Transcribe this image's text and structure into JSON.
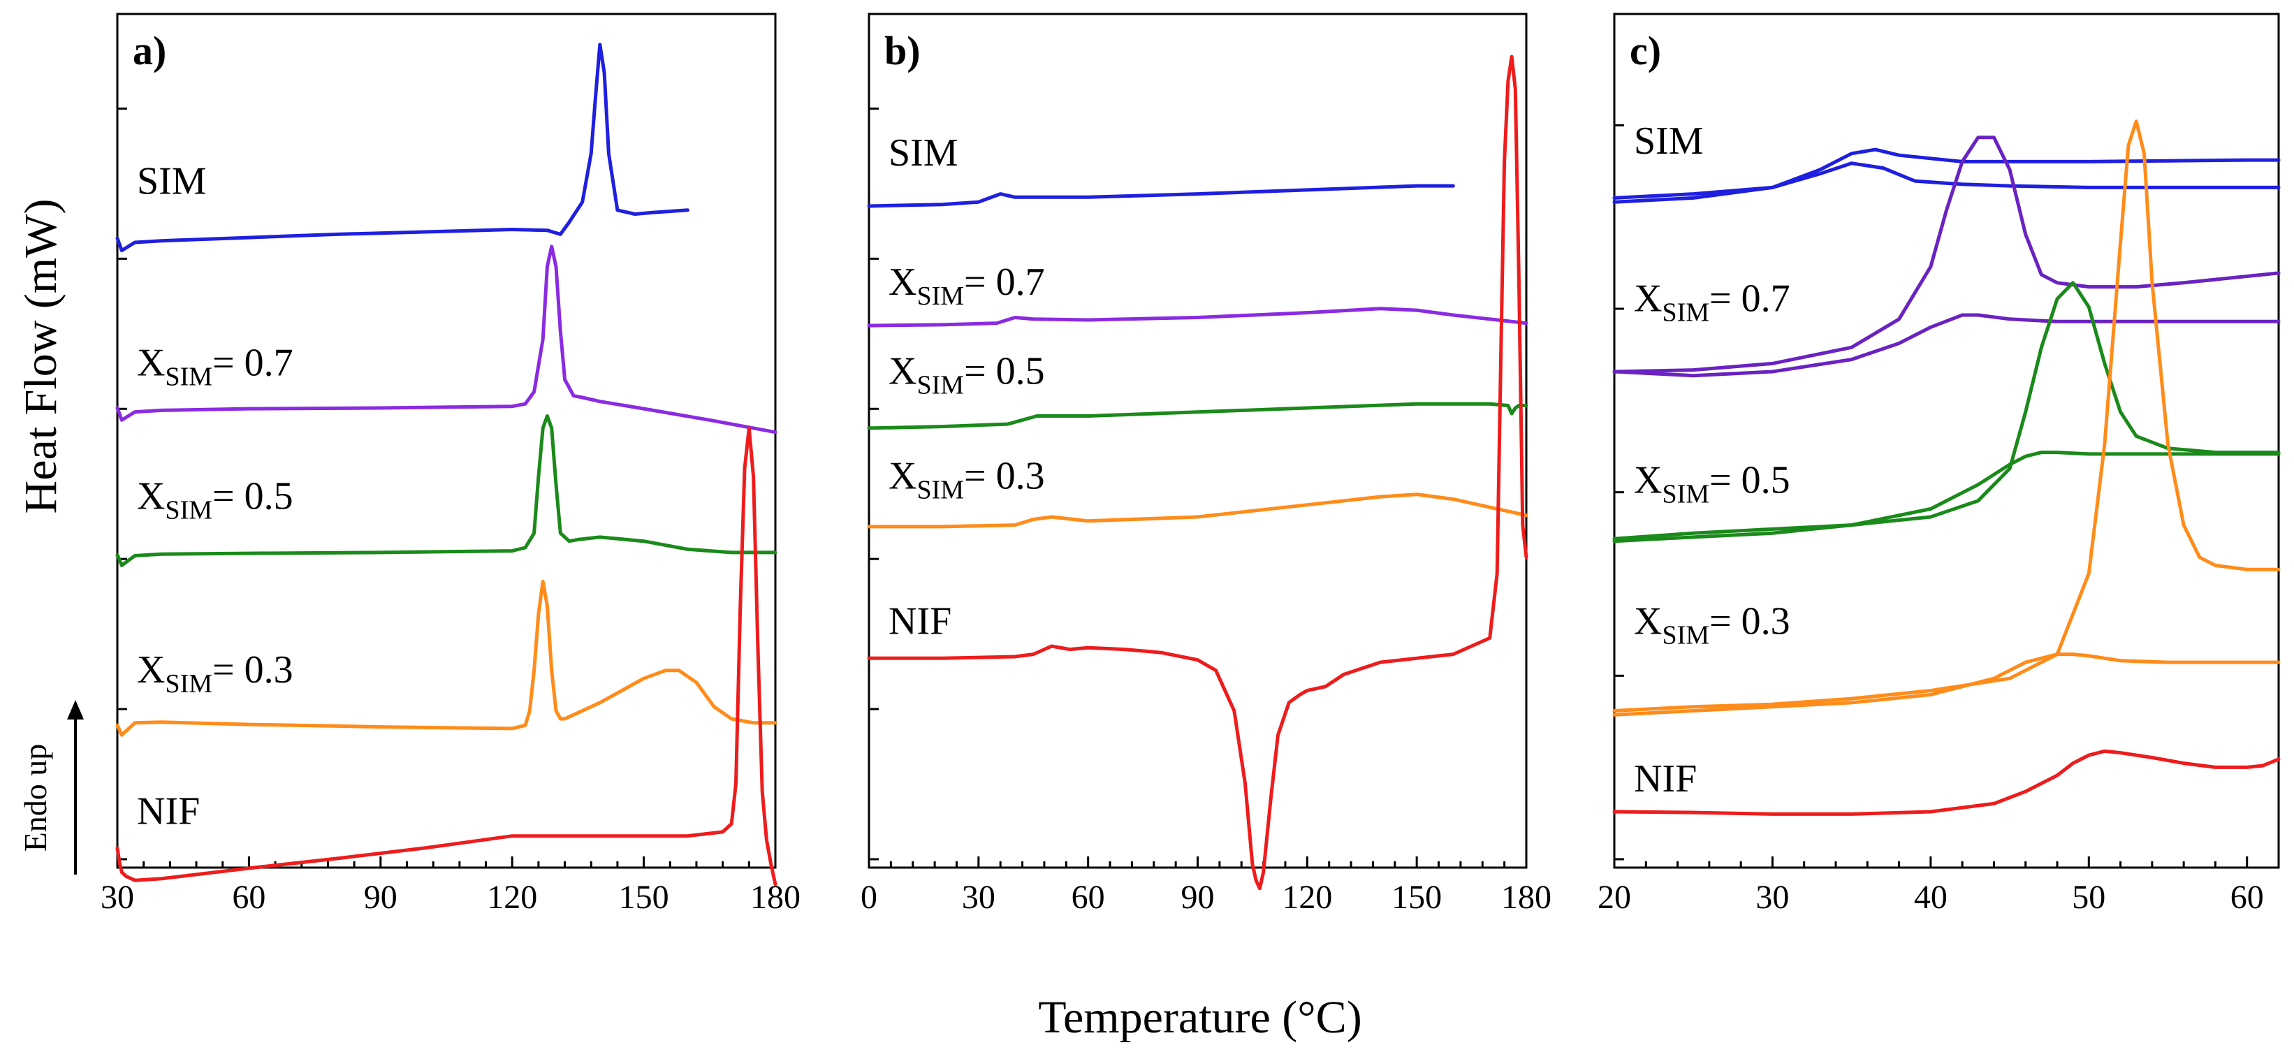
{
  "figure": {
    "xlabel": "Temperature (°C)",
    "ylabel": "Heat Flow (mW)",
    "endo_label": "Endo up"
  },
  "colors": {
    "SIM": "#1f1fe0",
    "X07": "#8a2be2",
    "X05": "#1a8a1a",
    "X03": "#ff8c1a",
    "NIF": "#ee1c1c",
    "X07_c": "#6a22c2"
  },
  "chart_data": [
    {
      "type": "line",
      "panel": "a)",
      "title": "a)",
      "xlabel": "Temperature (°C)",
      "ylabel": "Heat Flow (mW)",
      "xlim": [
        30,
        180
      ],
      "xticks": [
        30,
        60,
        90,
        120,
        150,
        180
      ],
      "ylim": [
        0,
        1
      ],
      "y_tick_count": 6,
      "series": [
        {
          "name": "SIM",
          "label": "SIM",
          "sub": "",
          "label_rest": "",
          "color": "#1f1fe0",
          "label_y": 0.81,
          "x": [
            30,
            31,
            34,
            40,
            60,
            80,
            100,
            120,
            128,
            131,
            133,
            136,
            138,
            139,
            140,
            141,
            142,
            144,
            148,
            152,
            160
          ],
          "y": [
            0.755,
            0.74,
            0.75,
            0.752,
            0.756,
            0.76,
            0.763,
            0.766,
            0.765,
            0.76,
            0.775,
            0.8,
            0.86,
            0.93,
            0.995,
            0.96,
            0.86,
            0.79,
            0.785,
            0.787,
            0.79
          ]
        },
        {
          "name": "X_SIM = 0.7",
          "label": "X",
          "sub": "SIM",
          "label_rest": "= 0.7",
          "color": "#8a2be2",
          "label_y": 0.585,
          "x": [
            30,
            31,
            34,
            40,
            60,
            90,
            120,
            123,
            125,
            127,
            128,
            129,
            130,
            131,
            132,
            134,
            136,
            140,
            150,
            165,
            180
          ],
          "y": [
            0.545,
            0.53,
            0.54,
            0.542,
            0.544,
            0.545,
            0.547,
            0.55,
            0.565,
            0.63,
            0.72,
            0.745,
            0.72,
            0.64,
            0.58,
            0.56,
            0.558,
            0.553,
            0.544,
            0.53,
            0.515
          ]
        },
        {
          "name": "X_SIM = 0.5",
          "label": "X",
          "sub": "SIM",
          "label_rest": "= 0.5",
          "color": "#1a8a1a",
          "label_y": 0.42,
          "x": [
            30,
            31,
            34,
            40,
            60,
            90,
            120,
            123,
            125,
            126,
            127,
            128,
            129,
            130,
            131,
            133,
            135,
            140,
            150,
            160,
            170,
            180
          ],
          "y": [
            0.363,
            0.35,
            0.362,
            0.364,
            0.365,
            0.366,
            0.368,
            0.372,
            0.39,
            0.46,
            0.52,
            0.535,
            0.52,
            0.45,
            0.39,
            0.38,
            0.382,
            0.385,
            0.38,
            0.37,
            0.366,
            0.366
          ]
        },
        {
          "name": "X_SIM = 0.3",
          "label": "X",
          "sub": "SIM",
          "label_rest": "= 0.3",
          "color": "#ff8c1a",
          "label_y": 0.205,
          "x": [
            30,
            31,
            34,
            40,
            60,
            90,
            120,
            123,
            124,
            125,
            126,
            127,
            128,
            129,
            130,
            131,
            132,
            134,
            140,
            145,
            150,
            155,
            158,
            162,
            166,
            170,
            175,
            180
          ],
          "y": [
            0.152,
            0.14,
            0.155,
            0.156,
            0.153,
            0.15,
            0.148,
            0.152,
            0.17,
            0.22,
            0.29,
            0.33,
            0.3,
            0.22,
            0.17,
            0.16,
            0.16,
            0.165,
            0.18,
            0.195,
            0.21,
            0.22,
            0.22,
            0.205,
            0.175,
            0.16,
            0.155,
            0.155
          ]
        },
        {
          "name": "NIF",
          "label": "NIF",
          "sub": "",
          "label_rest": "",
          "color": "#ee1c1c",
          "label_y": 0.03,
          "x": [
            30,
            30.5,
            31,
            32,
            34,
            40,
            60,
            80,
            100,
            120,
            140,
            160,
            168,
            170,
            171,
            172,
            173,
            174,
            175,
            176,
            177,
            178,
            179,
            180
          ],
          "y": [
            0.0,
            -0.018,
            -0.03,
            -0.035,
            -0.04,
            -0.038,
            -0.025,
            -0.013,
            0.0,
            0.015,
            0.015,
            0.015,
            0.02,
            0.03,
            0.08,
            0.3,
            0.47,
            0.52,
            0.46,
            0.25,
            0.07,
            0.01,
            -0.02,
            -0.045
          ]
        }
      ]
    },
    {
      "type": "line",
      "panel": "b)",
      "title": "b)",
      "xlabel": "Temperature (°C)",
      "ylabel": "Heat Flow (mW)",
      "xlim": [
        0,
        180
      ],
      "xticks": [
        0,
        30,
        60,
        90,
        120,
        150,
        180
      ],
      "ylim": [
        0,
        1
      ],
      "y_tick_count": 6,
      "series": [
        {
          "name": "SIM",
          "label": "SIM",
          "sub": "",
          "label_rest": "",
          "color": "#1f1fe0",
          "label_y": 0.845,
          "x": [
            0,
            20,
            30,
            33,
            36,
            40,
            60,
            90,
            120,
            150,
            160
          ],
          "y": [
            0.795,
            0.797,
            0.8,
            0.805,
            0.81,
            0.806,
            0.806,
            0.81,
            0.815,
            0.82,
            0.82
          ]
        },
        {
          "name": "X_SIM = 0.7",
          "label": "X",
          "sub": "SIM",
          "label_rest": "= 0.7",
          "color": "#8a2be2",
          "label_y": 0.685,
          "x": [
            0,
            20,
            35,
            40,
            45,
            60,
            90,
            120,
            140,
            150,
            160,
            170,
            180
          ],
          "y": [
            0.647,
            0.648,
            0.65,
            0.657,
            0.655,
            0.654,
            0.657,
            0.663,
            0.668,
            0.666,
            0.66,
            0.655,
            0.65
          ]
        },
        {
          "name": "X_SIM = 0.5",
          "label": "X",
          "sub": "SIM",
          "label_rest": "= 0.5",
          "color": "#1a8a1a",
          "label_y": 0.575,
          "x": [
            0,
            20,
            38,
            42,
            46,
            60,
            90,
            120,
            150,
            170,
            175,
            176,
            177,
            178,
            180
          ],
          "y": [
            0.52,
            0.522,
            0.525,
            0.53,
            0.535,
            0.535,
            0.54,
            0.545,
            0.55,
            0.55,
            0.548,
            0.538,
            0.545,
            0.548,
            0.548
          ]
        },
        {
          "name": "X_SIM = 0.3",
          "label": "X",
          "sub": "SIM",
          "label_rest": "= 0.3",
          "color": "#ff8c1a",
          "label_y": 0.445,
          "x": [
            0,
            20,
            40,
            45,
            50,
            60,
            90,
            120,
            140,
            150,
            160,
            170,
            180
          ],
          "y": [
            0.398,
            0.398,
            0.4,
            0.407,
            0.41,
            0.405,
            0.41,
            0.425,
            0.435,
            0.438,
            0.432,
            0.422,
            0.412
          ]
        },
        {
          "name": "NIF",
          "label": "NIF",
          "sub": "",
          "label_rest": "",
          "color": "#ee1c1c",
          "label_y": 0.265,
          "x": [
            0,
            20,
            40,
            45,
            50,
            55,
            60,
            70,
            80,
            90,
            95,
            100,
            103,
            105,
            106,
            107,
            108,
            110,
            112,
            115,
            118,
            120,
            125,
            130,
            140,
            150,
            160,
            170,
            172,
            173,
            174,
            175,
            176,
            177,
            178,
            179,
            180
          ],
          "y": [
            0.235,
            0.235,
            0.237,
            0.24,
            0.25,
            0.246,
            0.248,
            0.246,
            0.242,
            0.233,
            0.22,
            0.17,
            0.08,
            -0.02,
            -0.04,
            -0.05,
            -0.03,
            0.06,
            0.14,
            0.18,
            0.19,
            0.195,
            0.2,
            0.215,
            0.23,
            0.235,
            0.24,
            0.26,
            0.34,
            0.6,
            0.85,
            0.95,
            0.98,
            0.94,
            0.7,
            0.4,
            0.36
          ]
        }
      ]
    },
    {
      "type": "line",
      "panel": "c)",
      "title": "c)",
      "xlabel": "Temperature (°C)",
      "ylabel": "Heat Flow (mW)",
      "xlim": [
        20,
        62
      ],
      "xticks": [
        20,
        30,
        40,
        50,
        60
      ],
      "ylim": [
        0,
        1
      ],
      "y_tick_count": 5,
      "series": [
        {
          "name": "SIM",
          "label": "SIM",
          "sub": "",
          "label_rest": "",
          "color": "#1f1fe0",
          "label_y": 0.86,
          "x": [
            20,
            25,
            30,
            33,
            35,
            37,
            39,
            42,
            45,
            50,
            55,
            60,
            62
          ],
          "y": [
            0.805,
            0.81,
            0.818,
            0.835,
            0.848,
            0.842,
            0.826,
            0.822,
            0.82,
            0.818,
            0.818,
            0.818,
            0.818
          ],
          "x2": [
            20,
            25,
            30,
            33,
            35,
            36.5,
            38,
            42,
            45,
            50,
            55,
            60,
            62
          ],
          "y2": [
            0.8,
            0.805,
            0.818,
            0.84,
            0.86,
            0.865,
            0.858,
            0.85,
            0.85,
            0.85,
            0.851,
            0.852,
            0.852
          ]
        },
        {
          "name": "X_SIM = 0.7",
          "label": "X",
          "sub": "SIM",
          "label_rest": "= 0.7",
          "color": "#6a22c2",
          "label_y": 0.665,
          "x": [
            20,
            25,
            30,
            35,
            38,
            40,
            41,
            42,
            43,
            44,
            45,
            46,
            47,
            48,
            50,
            53,
            56,
            62
          ],
          "y": [
            0.59,
            0.592,
            0.6,
            0.62,
            0.655,
            0.72,
            0.79,
            0.85,
            0.88,
            0.88,
            0.84,
            0.76,
            0.71,
            0.7,
            0.695,
            0.695,
            0.7,
            0.712
          ],
          "x2": [
            20,
            25,
            30,
            35,
            38,
            40,
            42,
            43,
            45,
            48,
            50,
            55,
            60,
            62
          ],
          "y2": [
            0.59,
            0.585,
            0.59,
            0.605,
            0.625,
            0.645,
            0.66,
            0.66,
            0.655,
            0.652,
            0.652,
            0.652,
            0.652,
            0.652
          ]
        },
        {
          "name": "X_SIM = 0.5",
          "label": "X",
          "sub": "SIM",
          "label_rest": "= 0.5",
          "color": "#1a8a1a",
          "label_y": 0.44,
          "x": [
            20,
            25,
            30,
            35,
            40,
            43,
            45,
            46,
            47,
            48,
            49,
            50,
            51,
            52,
            53,
            55,
            58,
            62
          ],
          "y": [
            0.383,
            0.39,
            0.395,
            0.4,
            0.41,
            0.43,
            0.47,
            0.54,
            0.62,
            0.68,
            0.7,
            0.67,
            0.6,
            0.54,
            0.51,
            0.495,
            0.49,
            0.49
          ],
          "x2": [
            20,
            25,
            30,
            35,
            40,
            43,
            45,
            46,
            47,
            48,
            50,
            55,
            60,
            62
          ],
          "y2": [
            0.38,
            0.385,
            0.39,
            0.4,
            0.42,
            0.45,
            0.475,
            0.485,
            0.49,
            0.49,
            0.488,
            0.488,
            0.488,
            0.488
          ]
        },
        {
          "name": "X_SIM = 0.3",
          "label": "X",
          "sub": "SIM",
          "label_rest": "= 0.3",
          "color": "#ff8c1a",
          "label_y": 0.265,
          "x": [
            20,
            25,
            30,
            35,
            40,
            45,
            48,
            50,
            51,
            52,
            52.5,
            53,
            53.5,
            54,
            55,
            56,
            57,
            58,
            60,
            62
          ],
          "y": [
            0.17,
            0.175,
            0.178,
            0.185,
            0.195,
            0.21,
            0.24,
            0.34,
            0.5,
            0.75,
            0.87,
            0.9,
            0.86,
            0.7,
            0.5,
            0.4,
            0.36,
            0.35,
            0.345,
            0.345
          ],
          "x2": [
            20,
            25,
            30,
            35,
            40,
            44,
            46,
            48,
            49,
            50,
            52,
            55,
            60,
            62
          ],
          "y2": [
            0.165,
            0.17,
            0.175,
            0.18,
            0.19,
            0.21,
            0.23,
            0.24,
            0.24,
            0.238,
            0.232,
            0.23,
            0.23,
            0.23
          ]
        },
        {
          "name": "NIF",
          "label": "NIF",
          "sub": "",
          "label_rest": "",
          "color": "#ee1c1c",
          "label_y": 0.07,
          "x": [
            20,
            25,
            30,
            35,
            40,
            44,
            46,
            48,
            49,
            50,
            51,
            52,
            54,
            56,
            58,
            60,
            61,
            62
          ],
          "y": [
            0.045,
            0.044,
            0.042,
            0.042,
            0.045,
            0.055,
            0.07,
            0.09,
            0.105,
            0.115,
            0.12,
            0.118,
            0.112,
            0.105,
            0.1,
            0.1,
            0.102,
            0.11
          ]
        }
      ]
    }
  ]
}
